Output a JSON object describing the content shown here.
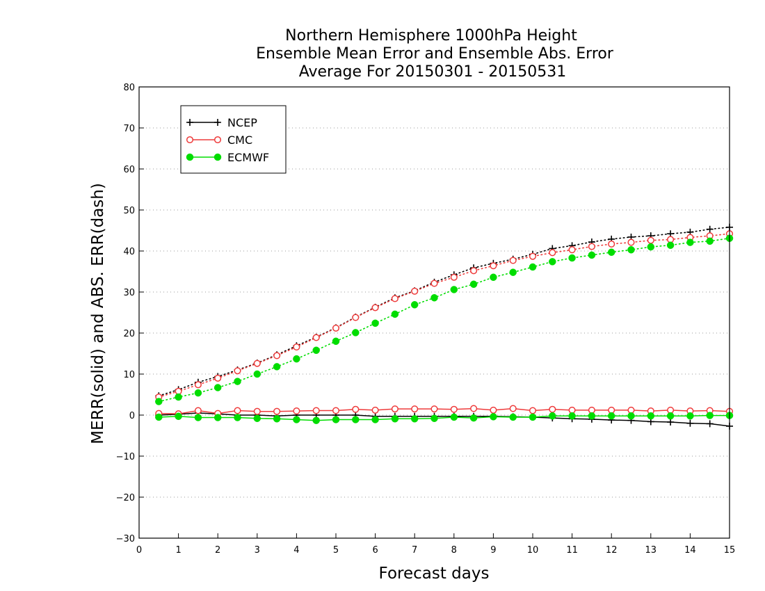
{
  "chart_data": {
    "type": "line",
    "title": [
      "Northern Hemisphere 1000hPa Height",
      "Ensemble Mean Error and Ensemble Abs. Error",
      "Average For 20150301 - 20150531"
    ],
    "xlabel": "Forecast days",
    "ylabel": "MERR(solid) and ABS. ERR(dash)",
    "xlim": [
      0,
      15
    ],
    "ylim": [
      -30,
      80
    ],
    "x_ticks": [
      0,
      1,
      2,
      3,
      4,
      5,
      6,
      7,
      8,
      9,
      10,
      11,
      12,
      13,
      14,
      15
    ],
    "y_ticks": [
      -30,
      -20,
      -10,
      0,
      10,
      20,
      30,
      40,
      50,
      60,
      70,
      80
    ],
    "grid": "horizontal dotted",
    "legend_position": "top-left",
    "x": [
      0.5,
      1,
      1.5,
      2,
      2.5,
      3,
      3.5,
      4,
      4.5,
      5,
      5.5,
      6,
      6.5,
      7,
      7.5,
      8,
      8.5,
      9,
      9.5,
      10,
      10.5,
      11,
      11.5,
      12,
      12.5,
      13,
      13.5,
      14,
      14.5,
      15
    ],
    "series": [
      {
        "name": "NCEP",
        "color": "#000000",
        "marker": "plus",
        "merr": [
          0.0,
          0.2,
          0.5,
          0.3,
          0.0,
          0.0,
          -0.2,
          0.0,
          0.0,
          0.0,
          0.0,
          -0.3,
          -0.3,
          -0.3,
          -0.3,
          -0.3,
          -0.3,
          -0.3,
          -0.4,
          -0.5,
          -0.7,
          -0.9,
          -1.0,
          -1.2,
          -1.3,
          -1.6,
          -1.7,
          -2.0,
          -2.1,
          -2.7
        ],
        "abs_err": [
          4.7,
          6.2,
          8.0,
          9.4,
          11.0,
          12.7,
          14.7,
          16.9,
          19.0,
          21.3,
          23.9,
          26.3,
          28.6,
          30.3,
          32.4,
          34.2,
          35.9,
          37.0,
          38.0,
          39.2,
          40.6,
          41.3,
          42.2,
          42.9,
          43.4,
          43.7,
          44.2,
          44.6,
          45.3,
          45.8
        ]
      },
      {
        "name": "CMC",
        "color": "#ee3b3b",
        "marker": "open-circle",
        "merr": [
          0.4,
          0.3,
          1.1,
          0.4,
          1.1,
          0.9,
          0.9,
          1.0,
          1.1,
          1.1,
          1.4,
          1.2,
          1.5,
          1.5,
          1.5,
          1.4,
          1.6,
          1.2,
          1.6,
          1.1,
          1.4,
          1.2,
          1.2,
          1.2,
          1.2,
          1.0,
          1.2,
          1.0,
          1.1,
          0.9
        ],
        "abs_err": [
          4.4,
          5.8,
          7.4,
          9.0,
          10.8,
          12.6,
          14.5,
          16.6,
          18.9,
          21.2,
          23.8,
          26.2,
          28.4,
          30.2,
          32.1,
          33.6,
          35.2,
          36.4,
          37.7,
          38.7,
          39.6,
          40.3,
          41.1,
          41.7,
          42.1,
          42.6,
          42.8,
          43.3,
          43.7,
          44.2
        ]
      },
      {
        "name": "ECMWF",
        "color": "#00dd00",
        "marker": "filled-circle",
        "merr": [
          -0.5,
          -0.3,
          -0.6,
          -0.6,
          -0.6,
          -0.8,
          -0.9,
          -1.1,
          -1.3,
          -1.1,
          -1.1,
          -1.1,
          -0.9,
          -0.9,
          -0.8,
          -0.5,
          -0.7,
          -0.4,
          -0.5,
          -0.5,
          -0.2,
          -0.2,
          -0.2,
          -0.2,
          -0.2,
          -0.2,
          -0.2,
          -0.2,
          -0.1,
          -0.1
        ],
        "abs_err": [
          3.3,
          4.4,
          5.4,
          6.7,
          8.2,
          10.0,
          11.8,
          13.7,
          15.8,
          18.0,
          20.1,
          22.4,
          24.6,
          26.9,
          28.6,
          30.6,
          31.9,
          33.6,
          34.8,
          36.1,
          37.4,
          38.3,
          39.0,
          39.7,
          40.3,
          41.0,
          41.4,
          42.1,
          42.4,
          43.1
        ]
      }
    ]
  }
}
